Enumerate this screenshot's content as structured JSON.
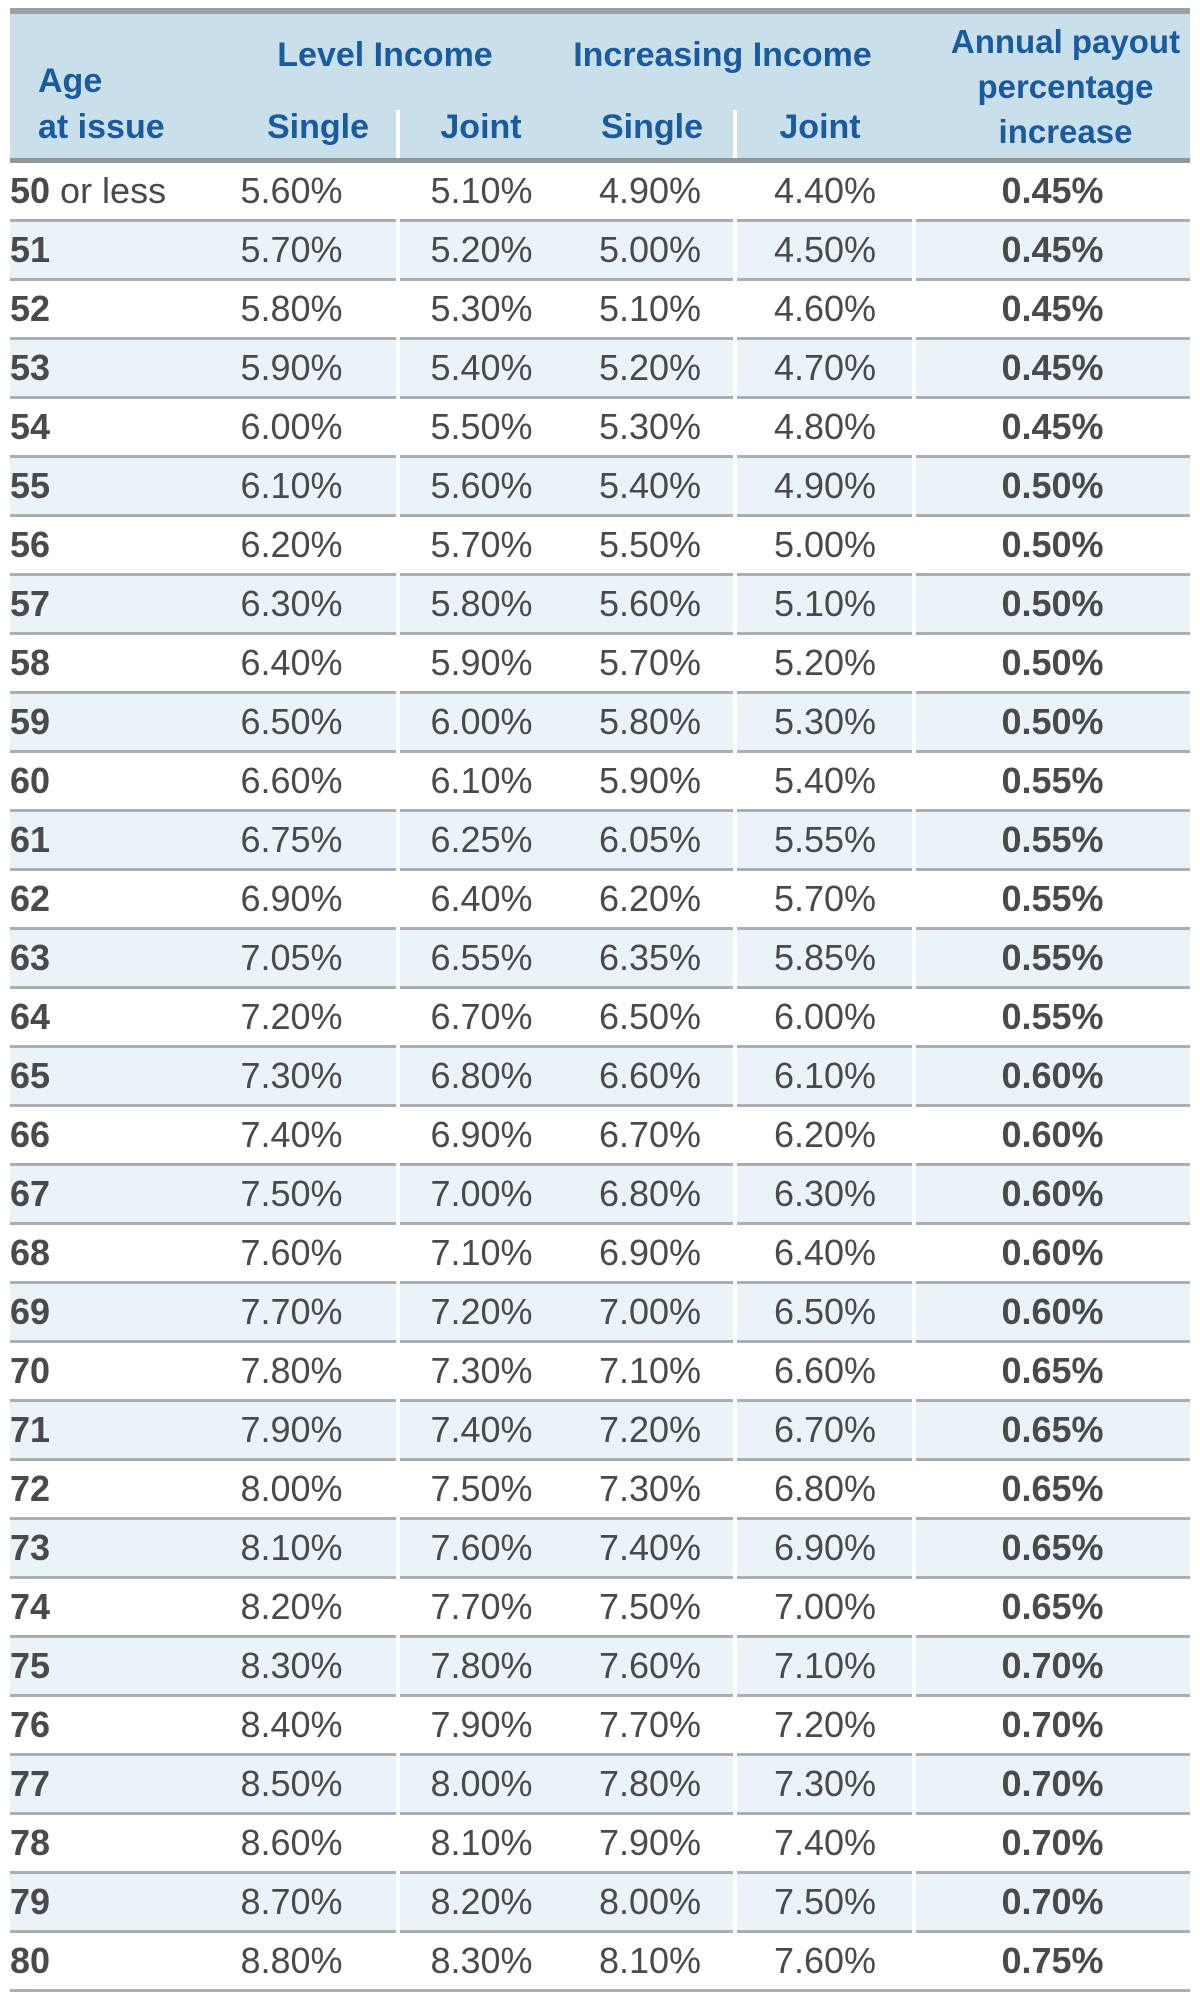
{
  "colors": {
    "header_bg": "#c9e0ea",
    "header_text": "#1a5a9e",
    "alt_row": "#e9f3f8",
    "divider": "#a9aeb1",
    "data_text": "#4a4a4c"
  },
  "header": {
    "age_line1": "Age",
    "age_line2": "at issue",
    "group1_label": "Level Income",
    "group2_label": "Increasing Income",
    "single_label": "Single",
    "joint_label": "Joint",
    "annual_line1": "Annual payout",
    "annual_line2": "percentage",
    "annual_line3": "increase"
  },
  "table": {
    "columns": [
      "Age at issue",
      "Level Income Single",
      "Level Income Joint",
      "Increasing Income Single",
      "Increasing Income Joint",
      "Annual payout percentage increase"
    ],
    "rows": [
      {
        "age": "50",
        "suffix": "or less",
        "level_single": "5.60%",
        "level_joint": "5.10%",
        "increasing_single": "4.90%",
        "increasing_joint": "4.40%",
        "annual_increase": "0.45%"
      },
      {
        "age": "51",
        "suffix": "",
        "level_single": "5.70%",
        "level_joint": "5.20%",
        "increasing_single": "5.00%",
        "increasing_joint": "4.50%",
        "annual_increase": "0.45%"
      },
      {
        "age": "52",
        "suffix": "",
        "level_single": "5.80%",
        "level_joint": "5.30%",
        "increasing_single": "5.10%",
        "increasing_joint": "4.60%",
        "annual_increase": "0.45%"
      },
      {
        "age": "53",
        "suffix": "",
        "level_single": "5.90%",
        "level_joint": "5.40%",
        "increasing_single": "5.20%",
        "increasing_joint": "4.70%",
        "annual_increase": "0.45%"
      },
      {
        "age": "54",
        "suffix": "",
        "level_single": "6.00%",
        "level_joint": "5.50%",
        "increasing_single": "5.30%",
        "increasing_joint": "4.80%",
        "annual_increase": "0.45%"
      },
      {
        "age": "55",
        "suffix": "",
        "level_single": "6.10%",
        "level_joint": "5.60%",
        "increasing_single": "5.40%",
        "increasing_joint": "4.90%",
        "annual_increase": "0.50%"
      },
      {
        "age": "56",
        "suffix": "",
        "level_single": "6.20%",
        "level_joint": "5.70%",
        "increasing_single": "5.50%",
        "increasing_joint": "5.00%",
        "annual_increase": "0.50%"
      },
      {
        "age": "57",
        "suffix": "",
        "level_single": "6.30%",
        "level_joint": "5.80%",
        "increasing_single": "5.60%",
        "increasing_joint": "5.10%",
        "annual_increase": "0.50%"
      },
      {
        "age": "58",
        "suffix": "",
        "level_single": "6.40%",
        "level_joint": "5.90%",
        "increasing_single": "5.70%",
        "increasing_joint": "5.20%",
        "annual_increase": "0.50%"
      },
      {
        "age": "59",
        "suffix": "",
        "level_single": "6.50%",
        "level_joint": "6.00%",
        "increasing_single": "5.80%",
        "increasing_joint": "5.30%",
        "annual_increase": "0.50%"
      },
      {
        "age": "60",
        "suffix": "",
        "level_single": "6.60%",
        "level_joint": "6.10%",
        "increasing_single": "5.90%",
        "increasing_joint": "5.40%",
        "annual_increase": "0.55%"
      },
      {
        "age": "61",
        "suffix": "",
        "level_single": "6.75%",
        "level_joint": "6.25%",
        "increasing_single": "6.05%",
        "increasing_joint": "5.55%",
        "annual_increase": "0.55%"
      },
      {
        "age": "62",
        "suffix": "",
        "level_single": "6.90%",
        "level_joint": "6.40%",
        "increasing_single": "6.20%",
        "increasing_joint": "5.70%",
        "annual_increase": "0.55%"
      },
      {
        "age": "63",
        "suffix": "",
        "level_single": "7.05%",
        "level_joint": "6.55%",
        "increasing_single": "6.35%",
        "increasing_joint": "5.85%",
        "annual_increase": "0.55%"
      },
      {
        "age": "64",
        "suffix": "",
        "level_single": "7.20%",
        "level_joint": "6.70%",
        "increasing_single": "6.50%",
        "increasing_joint": "6.00%",
        "annual_increase": "0.55%"
      },
      {
        "age": "65",
        "suffix": "",
        "level_single": "7.30%",
        "level_joint": "6.80%",
        "increasing_single": "6.60%",
        "increasing_joint": "6.10%",
        "annual_increase": "0.60%"
      },
      {
        "age": "66",
        "suffix": "",
        "level_single": "7.40%",
        "level_joint": "6.90%",
        "increasing_single": "6.70%",
        "increasing_joint": "6.20%",
        "annual_increase": "0.60%"
      },
      {
        "age": "67",
        "suffix": "",
        "level_single": "7.50%",
        "level_joint": "7.00%",
        "increasing_single": "6.80%",
        "increasing_joint": "6.30%",
        "annual_increase": "0.60%"
      },
      {
        "age": "68",
        "suffix": "",
        "level_single": "7.60%",
        "level_joint": "7.10%",
        "increasing_single": "6.90%",
        "increasing_joint": "6.40%",
        "annual_increase": "0.60%"
      },
      {
        "age": "69",
        "suffix": "",
        "level_single": "7.70%",
        "level_joint": "7.20%",
        "increasing_single": "7.00%",
        "increasing_joint": "6.50%",
        "annual_increase": "0.60%"
      },
      {
        "age": "70",
        "suffix": "",
        "level_single": "7.80%",
        "level_joint": "7.30%",
        "increasing_single": "7.10%",
        "increasing_joint": "6.60%",
        "annual_increase": "0.65%"
      },
      {
        "age": "71",
        "suffix": "",
        "level_single": "7.90%",
        "level_joint": "7.40%",
        "increasing_single": "7.20%",
        "increasing_joint": "6.70%",
        "annual_increase": "0.65%"
      },
      {
        "age": "72",
        "suffix": "",
        "level_single": "8.00%",
        "level_joint": "7.50%",
        "increasing_single": "7.30%",
        "increasing_joint": "6.80%",
        "annual_increase": "0.65%"
      },
      {
        "age": "73",
        "suffix": "",
        "level_single": "8.10%",
        "level_joint": "7.60%",
        "increasing_single": "7.40%",
        "increasing_joint": "6.90%",
        "annual_increase": "0.65%"
      },
      {
        "age": "74",
        "suffix": "",
        "level_single": "8.20%",
        "level_joint": "7.70%",
        "increasing_single": "7.50%",
        "increasing_joint": "7.00%",
        "annual_increase": "0.65%"
      },
      {
        "age": "75",
        "suffix": "",
        "level_single": "8.30%",
        "level_joint": "7.80%",
        "increasing_single": "7.60%",
        "increasing_joint": "7.10%",
        "annual_increase": "0.70%"
      },
      {
        "age": "76",
        "suffix": "",
        "level_single": "8.40%",
        "level_joint": "7.90%",
        "increasing_single": "7.70%",
        "increasing_joint": "7.20%",
        "annual_increase": "0.70%"
      },
      {
        "age": "77",
        "suffix": "",
        "level_single": "8.50%",
        "level_joint": "8.00%",
        "increasing_single": "7.80%",
        "increasing_joint": "7.30%",
        "annual_increase": "0.70%"
      },
      {
        "age": "78",
        "suffix": "",
        "level_single": "8.60%",
        "level_joint": "8.10%",
        "increasing_single": "7.90%",
        "increasing_joint": "7.40%",
        "annual_increase": "0.70%"
      },
      {
        "age": "79",
        "suffix": "",
        "level_single": "8.70%",
        "level_joint": "8.20%",
        "increasing_single": "8.00%",
        "increasing_joint": "7.50%",
        "annual_increase": "0.70%"
      },
      {
        "age": "80",
        "suffix": "",
        "level_single": "8.80%",
        "level_joint": "8.30%",
        "increasing_single": "8.10%",
        "increasing_joint": "7.60%",
        "annual_increase": "0.75%"
      }
    ]
  }
}
